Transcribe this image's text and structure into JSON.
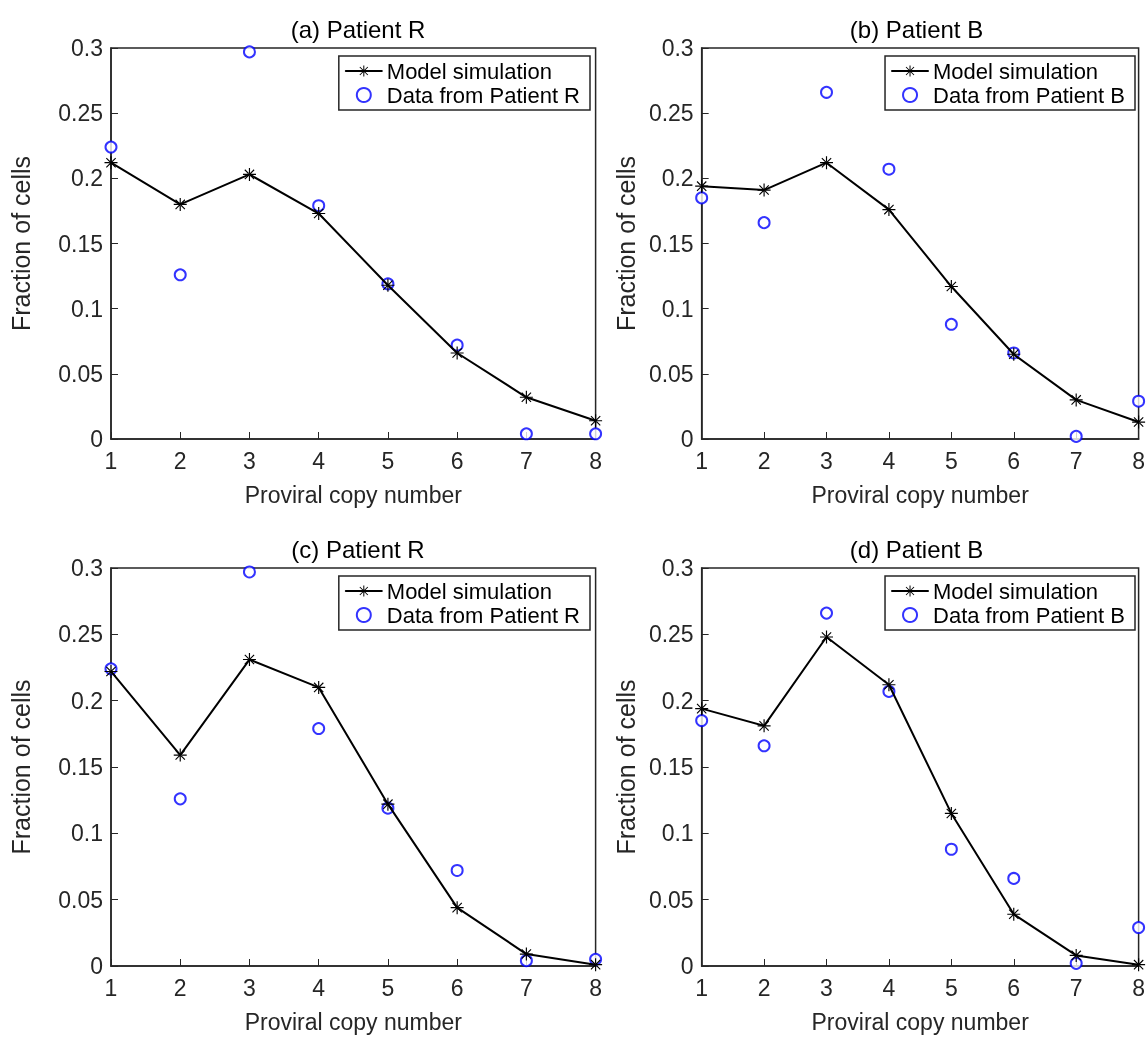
{
  "chart_data": [
    {
      "type": "line",
      "title": "(a) Patient R",
      "xlabel": "Proviral copy number",
      "ylabel": "Fraction of cells",
      "x": [
        1,
        2,
        3,
        4,
        5,
        6,
        7,
        8
      ],
      "xlim": [
        1,
        8
      ],
      "xticks": [
        1,
        2,
        3,
        4,
        5,
        6,
        7,
        8
      ],
      "ylim": [
        0,
        0.3
      ],
      "yticks": [
        0,
        0.05,
        0.1,
        0.15,
        0.2,
        0.25,
        0.3
      ],
      "grid": false,
      "legend": "top right",
      "series": [
        {
          "name": "Model simulation",
          "type": "line",
          "color": "#000000",
          "marker": "star",
          "line_style": "solid",
          "values": [
            0.212,
            0.18,
            0.203,
            0.173,
            0.118,
            0.066,
            0.032,
            0.014
          ]
        },
        {
          "name": "Data from Patient R",
          "type": "scatter",
          "color": "#0000ff",
          "marker": "circle",
          "values": [
            0.224,
            0.126,
            0.297,
            0.179,
            0.119,
            0.072,
            0.004,
            0.004
          ]
        }
      ]
    },
    {
      "type": "line",
      "title": "(b) Patient B",
      "xlabel": "Proviral copy number",
      "ylabel": "Fraction of cells",
      "x": [
        1,
        2,
        3,
        4,
        5,
        6,
        7,
        8
      ],
      "xlim": [
        1,
        8
      ],
      "xticks": [
        1,
        2,
        3,
        4,
        5,
        6,
        7,
        8
      ],
      "ylim": [
        0,
        0.3
      ],
      "yticks": [
        0,
        0.05,
        0.1,
        0.15,
        0.2,
        0.25,
        0.3
      ],
      "grid": false,
      "legend": "top right",
      "series": [
        {
          "name": "Model simulation",
          "type": "line",
          "color": "#000000",
          "marker": "star",
          "line_style": "solid",
          "values": [
            0.194,
            0.191,
            0.212,
            0.176,
            0.117,
            0.065,
            0.03,
            0.013
          ]
        },
        {
          "name": "Data from Patient B",
          "type": "scatter",
          "color": "#0000ff",
          "marker": "circle",
          "values": [
            0.185,
            0.166,
            0.266,
            0.207,
            0.088,
            0.066,
            0.002,
            0.029
          ]
        }
      ]
    },
    {
      "type": "line",
      "title": "(c) Patient R",
      "xlabel": "Proviral copy number",
      "ylabel": "Fraction of cells",
      "x": [
        1,
        2,
        3,
        4,
        5,
        6,
        7,
        8
      ],
      "xlim": [
        1,
        8
      ],
      "xticks": [
        1,
        2,
        3,
        4,
        5,
        6,
        7,
        8
      ],
      "ylim": [
        0,
        0.3
      ],
      "yticks": [
        0,
        0.05,
        0.1,
        0.15,
        0.2,
        0.25,
        0.3
      ],
      "grid": false,
      "legend": "top right",
      "series": [
        {
          "name": "Model simulation",
          "type": "line",
          "color": "#000000",
          "marker": "star",
          "line_style": "solid",
          "values": [
            0.222,
            0.159,
            0.231,
            0.21,
            0.122,
            0.044,
            0.009,
            0.001
          ]
        },
        {
          "name": "Data from Patient R",
          "type": "scatter",
          "color": "#0000ff",
          "marker": "circle",
          "values": [
            0.224,
            0.126,
            0.297,
            0.179,
            0.119,
            0.072,
            0.004,
            0.005
          ]
        }
      ]
    },
    {
      "type": "line",
      "title": "(d) Patient B",
      "xlabel": "Proviral copy number",
      "ylabel": "Fraction of cells",
      "x": [
        1,
        2,
        3,
        4,
        5,
        6,
        7,
        8
      ],
      "xlim": [
        1,
        8
      ],
      "xticks": [
        1,
        2,
        3,
        4,
        5,
        6,
        7,
        8
      ],
      "ylim": [
        0,
        0.3
      ],
      "yticks": [
        0,
        0.05,
        0.1,
        0.15,
        0.2,
        0.25,
        0.3
      ],
      "grid": false,
      "legend": "top right",
      "series": [
        {
          "name": "Model simulation",
          "type": "line",
          "color": "#000000",
          "marker": "star",
          "line_style": "solid",
          "values": [
            0.194,
            0.181,
            0.248,
            0.212,
            0.115,
            0.039,
            0.008,
            0.001
          ]
        },
        {
          "name": "Data from Patient B",
          "type": "scatter",
          "color": "#0000ff",
          "marker": "circle",
          "values": [
            0.185,
            0.166,
            0.266,
            0.207,
            0.088,
            0.066,
            0.002,
            0.029
          ]
        }
      ]
    }
  ]
}
